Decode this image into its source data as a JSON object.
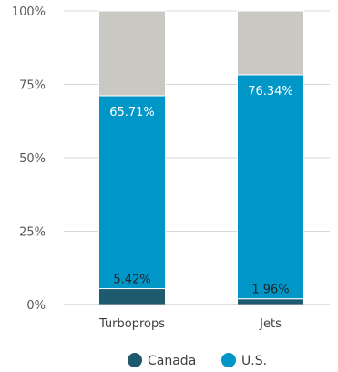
{
  "chart_data": {
    "type": "bar",
    "stacked": true,
    "categories": [
      "Turboprops",
      "Jets"
    ],
    "series": [
      {
        "name": "Canada",
        "values": [
          5.42,
          1.96
        ],
        "color": "#1e5a6e",
        "labels": [
          "5.42%",
          "1.96%"
        ]
      },
      {
        "name": "U.S.",
        "values": [
          65.71,
          76.34
        ],
        "color": "#0096c8",
        "labels": [
          "65.71%",
          "76.34%"
        ]
      },
      {
        "name": "",
        "values": [
          28.87,
          21.7
        ],
        "color": "#c9c8c3",
        "labels": [
          "",
          ""
        ]
      }
    ],
    "y_ticks": [
      "0%",
      "25%",
      "50%",
      "75%",
      "100%"
    ],
    "ylim": [
      0,
      100
    ],
    "grid": true,
    "legend": "bottom-center"
  }
}
